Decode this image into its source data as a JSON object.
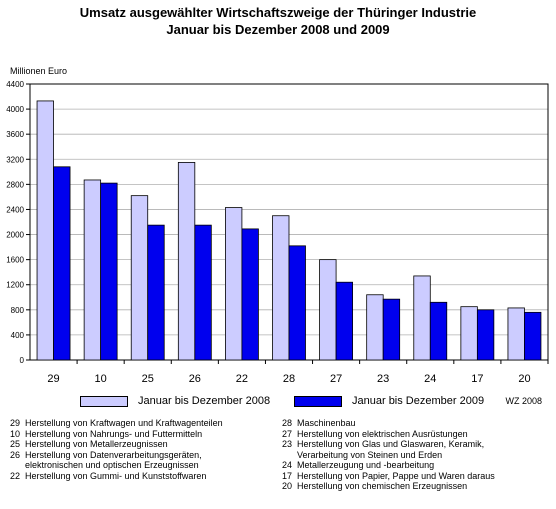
{
  "chart_data": {
    "type": "bar",
    "title": "Umsatz ausgewählter Wirtschaftszweige der Thüringer Industrie",
    "subtitle": "Januar bis Dezember 2008 und 2009",
    "ylabel": "Millionen Euro",
    "xlabel": "",
    "ylim": [
      0,
      4400
    ],
    "yticks": [
      0,
      400,
      800,
      1200,
      1600,
      2000,
      2400,
      2800,
      3200,
      3600,
      4000,
      4400
    ],
    "grid": true,
    "legend_position": "bottom",
    "categories": [
      "29",
      "10",
      "25",
      "26",
      "22",
      "28",
      "27",
      "23",
      "24",
      "17",
      "20"
    ],
    "series": [
      {
        "name": "Januar bis Dezember 2008",
        "color": "#ccccff",
        "values": [
          4130,
          2870,
          2620,
          3150,
          2430,
          2300,
          1600,
          1040,
          1340,
          850,
          830
        ]
      },
      {
        "name": "Januar bis Dezember 2009",
        "color": "#0000ee",
        "values": [
          3080,
          2820,
          2150,
          2150,
          2090,
          1820,
          1240,
          970,
          920,
          800,
          760
        ]
      }
    ]
  },
  "source_note": "WZ 2008",
  "footnotes": {
    "left": [
      {
        "code": "29",
        "text": "Herstellung von Kraftwagen und Kraftwagenteilen"
      },
      {
        "code": "10",
        "text": "Herstellung von Nahrungs- und Futtermitteln"
      },
      {
        "code": "25",
        "text": "Herstellung von Metallerzeugnissen"
      },
      {
        "code": "26",
        "text": "Herstellung von Datenverarbeitungsgeräten,\nelektronischen und optischen Erzeugnissen"
      },
      {
        "code": "22",
        "text": "Herstellung von Gummi- und Kunststoffwaren"
      }
    ],
    "right": [
      {
        "code": "28",
        "text": "Maschinenbau"
      },
      {
        "code": "27",
        "text": "Herstellung von elektrischen Ausrüstungen"
      },
      {
        "code": "23",
        "text": "Herstellung von Glas und Glaswaren, Keramik,\nVerarbeitung von Steinen und Erden"
      },
      {
        "code": "24",
        "text": "Metallerzeugung und -bearbeitung"
      },
      {
        "code": "17",
        "text": "Herstellung von Papier, Pappe und Waren daraus"
      },
      {
        "code": "20",
        "text": "Herstellung von chemischen Erzeugnissen"
      }
    ]
  }
}
